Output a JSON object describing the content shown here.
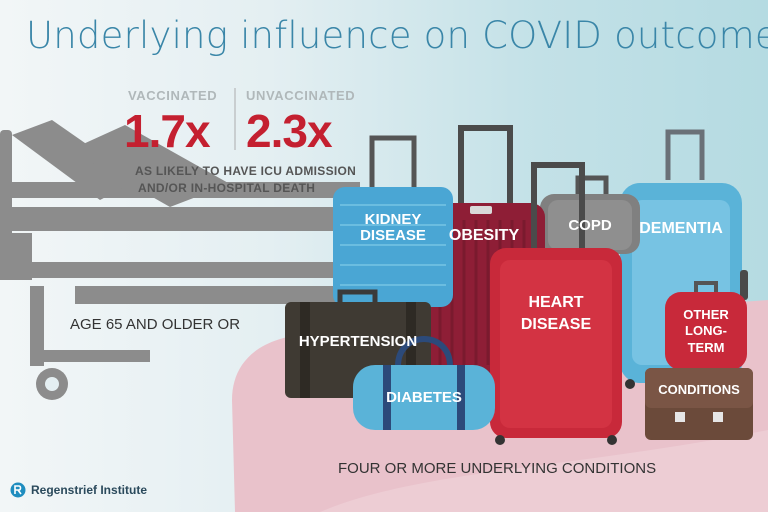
{
  "title": "Underlying influence on COVID outcomes",
  "stats": {
    "vaccinated": {
      "label": "VACCINATED",
      "value": "1.7x"
    },
    "unvaccinated": {
      "label": "UNVACCINATED",
      "value": "2.3x"
    },
    "subline_1": "AS LIKELY TO HAVE ICU ADMISSION",
    "subline_2": "AND/OR IN-HOSPITAL DEATH"
  },
  "labels": {
    "age": "AGE 65 AND OLDER OR",
    "four_conditions": "FOUR OR MORE UNDERLYING CONDITIONS"
  },
  "luggage": {
    "kidney_1": "KIDNEY",
    "kidney_2": "DISEASE",
    "obesity": "OBESITY",
    "copd": "COPD",
    "dementia": "DEMENTIA",
    "heart_1": "HEART",
    "heart_2": "DISEASE",
    "hypertension": "HYPERTENSION",
    "diabetes": "DIABETES",
    "other_1": "OTHER",
    "other_2": "LONG-",
    "other_3": "TERM",
    "conditions": "CONDITIONS"
  },
  "logo": {
    "text": "Regenstrief Institute"
  },
  "colors": {
    "title": "#3a86a8",
    "accent_red": "#c42030",
    "bed_gray": "#8c8c8c",
    "pink_blob": "#e9c2cb"
  }
}
